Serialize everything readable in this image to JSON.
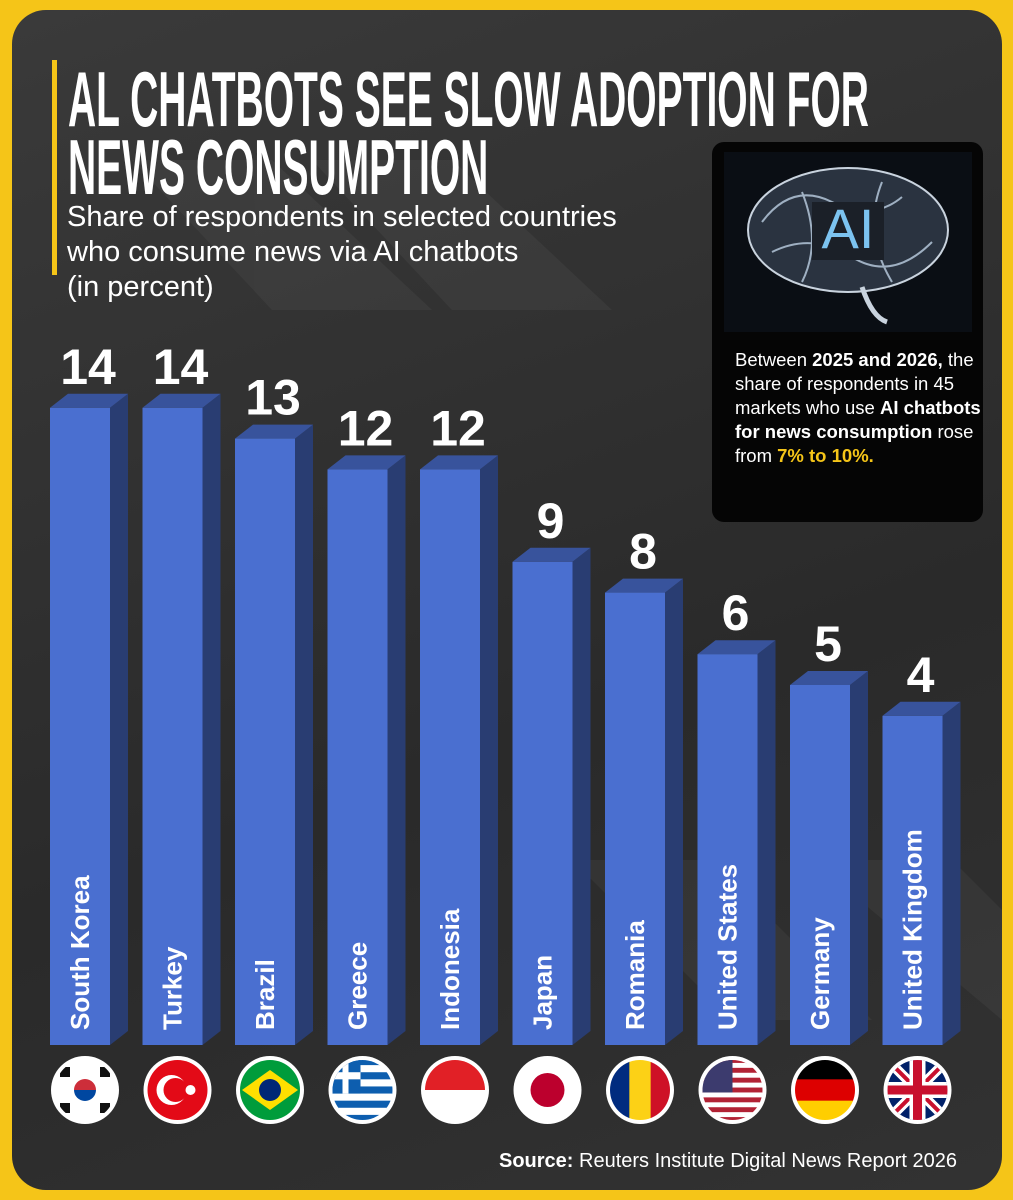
{
  "chart_data": {
    "type": "bar",
    "title": [
      "AL CHATBOTS SEE SLOW ADOPTION FOR",
      "NEWS CONSUMPTION"
    ],
    "subtitle": [
      "Share of respondents in selected countries",
      "who consume news via AI chatbots",
      "(in percent)"
    ],
    "categories": [
      "South Korea",
      "Turkey",
      "Brazil",
      "Greece",
      "Indonesia",
      "Japan",
      "Romania",
      "United States",
      "Germany",
      "United Kingdom"
    ],
    "values": [
      14,
      14,
      13,
      12,
      12,
      9,
      8,
      6,
      5,
      4
    ],
    "color": "#4a6fd0"
  },
  "info_box": {
    "image_text": "AI",
    "text": [
      {
        "text": "Between ",
        "style": "normal"
      },
      {
        "text": "2025 and 2026,",
        "style": "bold"
      },
      {
        "text": " the share of respondents in 45 markets who use ",
        "style": "normal"
      },
      {
        "text": "AI chatbots for news consumption",
        "style": "bold"
      },
      {
        "text": " rose from ",
        "style": "normal"
      },
      {
        "text": "7% to 10%.",
        "style": "highlight"
      }
    ]
  },
  "source": {
    "label": "Source:",
    "text": "Reuters Institute Digital News Report 2026"
  }
}
